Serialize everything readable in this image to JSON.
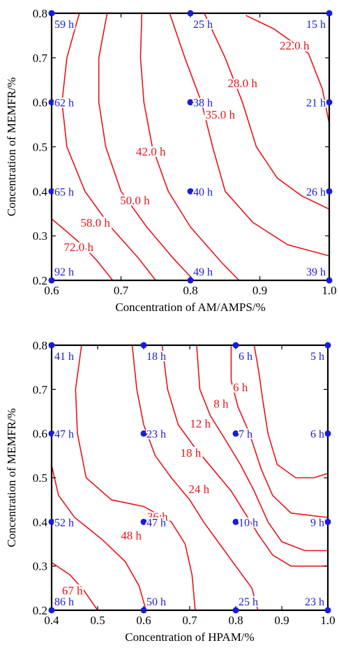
{
  "colors": {
    "contour": "#e8141a",
    "point": "#1a1adb",
    "axis": "#000000"
  },
  "chart_data": [
    {
      "type": "contour",
      "xlabel": "Concentration of AM/AMPS/%",
      "ylabel": "Concentration of MEMFR/%",
      "xlim": [
        0.6,
        1.0
      ],
      "ylim": [
        0.2,
        0.8
      ],
      "xticks": [
        "0.6",
        "0.7",
        "0.8",
        "0.9",
        "1.0"
      ],
      "yticks": [
        "0.2",
        "0.3",
        "0.4",
        "0.5",
        "0.6",
        "0.7",
        "0.8"
      ],
      "points": [
        {
          "x": 0.6,
          "y": 0.8,
          "label": "59 h"
        },
        {
          "x": 0.8,
          "y": 0.8,
          "label": "25 h"
        },
        {
          "x": 1.0,
          "y": 0.8,
          "label": "15 h"
        },
        {
          "x": 0.6,
          "y": 0.6,
          "label": "62 h"
        },
        {
          "x": 0.8,
          "y": 0.6,
          "label": "38 h"
        },
        {
          "x": 1.0,
          "y": 0.6,
          "label": "21 h"
        },
        {
          "x": 0.6,
          "y": 0.4,
          "label": "65 h"
        },
        {
          "x": 0.8,
          "y": 0.4,
          "label": "40 h"
        },
        {
          "x": 1.0,
          "y": 0.4,
          "label": "26 h"
        },
        {
          "x": 0.6,
          "y": 0.2,
          "label": "92 h"
        },
        {
          "x": 0.8,
          "y": 0.2,
          "label": "49 h"
        },
        {
          "x": 1.0,
          "y": 0.2,
          "label": "39 h"
        }
      ],
      "contours": [
        {
          "label": "72.0 h",
          "label_at": [
            0.639,
            0.275
          ],
          "line": [
            [
              0.6,
              0.338
            ],
            [
              0.62,
              0.312
            ],
            [
              0.645,
              0.278
            ],
            [
              0.665,
              0.245
            ],
            [
              0.688,
              0.2
            ]
          ]
        },
        {
          "label": "58.0 h",
          "label_at": [
            0.663,
            0.33
          ],
          "line": [
            [
              0.64,
              0.8
            ],
            [
              0.622,
              0.7
            ],
            [
              0.615,
              0.6
            ],
            [
              0.622,
              0.5
            ],
            [
              0.648,
              0.4
            ],
            [
              0.685,
              0.32
            ],
            [
              0.725,
              0.25
            ],
            [
              0.75,
              0.2
            ]
          ]
        },
        {
          "label": "50.0 h",
          "label_at": [
            0.72,
            0.38
          ],
          "line": [
            [
              0.68,
              0.8
            ],
            [
              0.668,
              0.7
            ],
            [
              0.668,
              0.6
            ],
            [
              0.678,
              0.5
            ],
            [
              0.7,
              0.4
            ],
            [
              0.737,
              0.32
            ],
            [
              0.775,
              0.25
            ],
            [
              0.805,
              0.2
            ]
          ]
        },
        {
          "label": "42.0 h",
          "label_at": [
            0.743,
            0.49
          ],
          "line": [
            [
              0.73,
              0.8
            ],
            [
              0.728,
              0.7
            ],
            [
              0.733,
              0.6
            ],
            [
              0.745,
              0.5
            ],
            [
              0.768,
              0.4
            ],
            [
              0.8,
              0.32
            ],
            [
              0.845,
              0.24
            ],
            [
              0.87,
              0.2
            ]
          ]
        },
        {
          "label": "35.0 h",
          "label_at": [
            0.843,
            0.573
          ],
          "line": [
            [
              0.77,
              0.8
            ],
            [
              0.792,
              0.7
            ],
            [
              0.816,
              0.6
            ],
            [
              0.832,
              0.5
            ],
            [
              0.85,
              0.4
            ],
            [
              0.89,
              0.33
            ],
            [
              0.94,
              0.28
            ],
            [
              1.0,
              0.255
            ]
          ]
        },
        {
          "label": "28.0 h",
          "label_at": [
            0.875,
            0.643
          ],
          "line": [
            [
              0.82,
              0.8
            ],
            [
              0.85,
              0.7
            ],
            [
              0.875,
              0.6
            ],
            [
              0.895,
              0.5
            ],
            [
              0.925,
              0.43
            ],
            [
              0.96,
              0.39
            ],
            [
              1.0,
              0.36
            ]
          ]
        },
        {
          "label": "22.0 h",
          "label_at": [
            0.95,
            0.728
          ],
          "line": [
            [
              0.88,
              0.795
            ],
            [
              0.92,
              0.765
            ],
            [
              0.97,
              0.71
            ],
            [
              0.99,
              0.63
            ],
            [
              1.0,
              0.552
            ]
          ]
        }
      ]
    },
    {
      "type": "contour",
      "xlabel": "Concentration of HPAM/%",
      "ylabel": "Concentration of MEMFR/%",
      "xlim": [
        0.4,
        1.0
      ],
      "ylim": [
        0.2,
        0.8
      ],
      "xticks": [
        "0.4",
        "0.5",
        "0.6",
        "0.7",
        "0.8",
        "0.9",
        "1.0"
      ],
      "yticks": [
        "0.2",
        "0.3",
        "0.4",
        "0.5",
        "0.6",
        "0.7",
        "0.8"
      ],
      "points": [
        {
          "x": 0.4,
          "y": 0.8,
          "label": "41 h"
        },
        {
          "x": 0.6,
          "y": 0.8,
          "label": "18 h"
        },
        {
          "x": 0.8,
          "y": 0.8,
          "label": "6 h"
        },
        {
          "x": 1.0,
          "y": 0.8,
          "label": "5 h"
        },
        {
          "x": 0.4,
          "y": 0.6,
          "label": "47 h"
        },
        {
          "x": 0.6,
          "y": 0.6,
          "label": "23 h"
        },
        {
          "x": 0.8,
          "y": 0.6,
          "label": "7 h"
        },
        {
          "x": 1.0,
          "y": 0.6,
          "label": "6 h"
        },
        {
          "x": 0.4,
          "y": 0.4,
          "label": "52 h"
        },
        {
          "x": 0.6,
          "y": 0.4,
          "label": "47 h"
        },
        {
          "x": 0.8,
          "y": 0.4,
          "label": "10 h"
        },
        {
          "x": 1.0,
          "y": 0.4,
          "label": "9 h"
        },
        {
          "x": 0.4,
          "y": 0.2,
          "label": "86 h"
        },
        {
          "x": 0.6,
          "y": 0.2,
          "label": "50 h"
        },
        {
          "x": 0.8,
          "y": 0.2,
          "label": "25 h"
        },
        {
          "x": 1.0,
          "y": 0.2,
          "label": "23 h"
        }
      ],
      "contours": [
        {
          "label": "67 h",
          "label_at": [
            0.445,
            0.245
          ],
          "line": [
            [
              0.4,
              0.308
            ],
            [
              0.44,
              0.28
            ],
            [
              0.47,
              0.245
            ],
            [
              0.5,
              0.2
            ]
          ]
        },
        {
          "label": "48 h",
          "label_at": [
            0.573,
            0.37
          ],
          "line": [
            [
              0.4,
              0.528
            ],
            [
              0.415,
              0.46
            ],
            [
              0.45,
              0.41
            ],
            [
              0.51,
              0.36
            ],
            [
              0.56,
              0.31
            ],
            [
              0.59,
              0.255
            ],
            [
              0.605,
              0.2
            ]
          ]
        },
        {
          "label": "36 h",
          "label_at": [
            0.63,
            0.412
          ],
          "line": [
            [
              0.465,
              0.8
            ],
            [
              0.452,
              0.7
            ],
            [
              0.456,
              0.6
            ],
            [
              0.475,
              0.5
            ],
            [
              0.53,
              0.45
            ],
            [
              0.6,
              0.435
            ],
            [
              0.66,
              0.4
            ],
            [
              0.69,
              0.35
            ],
            [
              0.705,
              0.28
            ],
            [
              0.712,
              0.2
            ]
          ]
        },
        {
          "label": "24 h",
          "label_at": [
            0.72,
            0.475
          ],
          "line": [
            [
              0.575,
              0.8
            ],
            [
              0.585,
              0.7
            ],
            [
              0.6,
              0.62
            ],
            [
              0.625,
              0.55
            ],
            [
              0.66,
              0.5
            ],
            [
              0.7,
              0.45
            ],
            [
              0.73,
              0.4
            ],
            [
              0.765,
              0.35
            ],
            [
              0.8,
              0.3
            ],
            [
              0.835,
              0.25
            ],
            [
              0.848,
              0.2
            ]
          ]
        },
        {
          "label": "18 h",
          "label_at": [
            0.702,
            0.557
          ],
          "line": [
            [
              0.64,
              0.8
            ],
            [
              0.652,
              0.7
            ],
            [
              0.675,
              0.62
            ],
            [
              0.71,
              0.57
            ],
            [
              0.75,
              0.52
            ],
            [
              0.79,
              0.47
            ],
            [
              0.82,
              0.42
            ],
            [
              0.85,
              0.37
            ],
            [
              0.88,
              0.325
            ],
            [
              0.92,
              0.3
            ],
            [
              1.0,
              0.3
            ]
          ]
        },
        {
          "label": "12 h",
          "label_at": [
            0.723,
            0.623
          ],
          "line": [
            [
              0.715,
              0.8
            ],
            [
              0.722,
              0.7
            ],
            [
              0.745,
              0.64
            ],
            [
              0.775,
              0.59
            ],
            [
              0.81,
              0.53
            ],
            [
              0.84,
              0.47
            ],
            [
              0.87,
              0.4
            ],
            [
              0.9,
              0.355
            ],
            [
              0.95,
              0.335
            ],
            [
              1.0,
              0.335
            ]
          ]
        },
        {
          "label": "8 h",
          "label_at": [
            0.768,
            0.668
          ],
          "line": [
            [
              0.79,
              0.8
            ],
            [
              0.79,
              0.72
            ],
            [
              0.805,
              0.66
            ],
            [
              0.83,
              0.6
            ],
            [
              0.855,
              0.52
            ],
            [
              0.88,
              0.46
            ],
            [
              0.92,
              0.42
            ],
            [
              1.0,
              0.41
            ]
          ]
        },
        {
          "label": "6 h",
          "label_at": [
            0.81,
            0.705
          ],
          "line": [
            [
              0.84,
              0.8
            ],
            [
              0.85,
              0.74
            ],
            [
              0.858,
              0.68
            ],
            [
              0.87,
              0.6
            ],
            [
              0.89,
              0.53
            ],
            [
              0.93,
              0.5
            ],
            [
              0.97,
              0.5
            ],
            [
              1.0,
              0.51
            ]
          ]
        }
      ]
    }
  ]
}
